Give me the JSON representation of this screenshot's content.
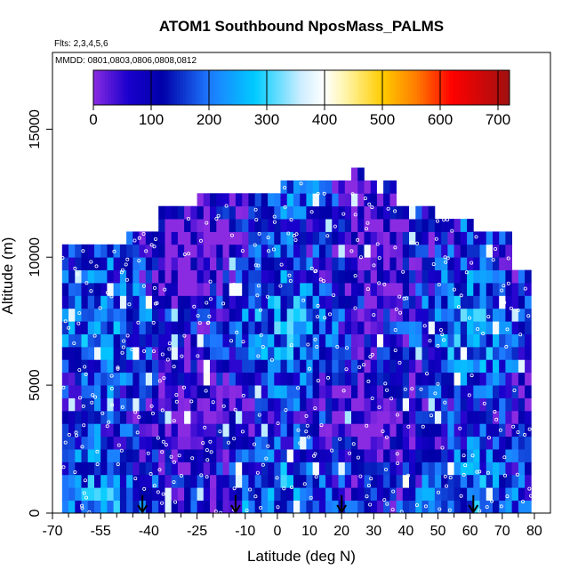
{
  "chart_data": {
    "type": "heatmap",
    "title": "ATOM1 Southbound NposMass_PALMS",
    "flights_note": "Flts: 2,3,4,5,6",
    "dates_note": "MMDD: 0801,0803,0806,0808,0812",
    "xlabel": "Latitude (deg N)",
    "ylabel": "Altitude (m)",
    "xlim": [
      -70,
      85
    ],
    "ylim": [
      0,
      18000
    ],
    "x_ticks": [
      -70,
      -55,
      -40,
      -25,
      -10,
      0,
      10,
      20,
      30,
      40,
      50,
      60,
      70,
      80
    ],
    "x_tick_labels": [
      "-70",
      "-55",
      "-40",
      "-25",
      "-10",
      "0",
      "10",
      "20",
      "30",
      "40",
      "50",
      "60",
      "70",
      "80"
    ],
    "x_minor_ticks": [
      -65,
      -60,
      -50,
      -45,
      -35,
      -30,
      -20,
      -15,
      -5,
      5,
      15,
      25,
      35,
      45,
      55,
      65,
      75
    ],
    "y_ticks": [
      0,
      5000,
      10000,
      15000
    ],
    "y_tick_labels": [
      "0",
      "5000",
      "10000",
      "15000"
    ],
    "colorbar": {
      "min": 0,
      "max": 720,
      "ticks": [
        0,
        100,
        200,
        300,
        400,
        500,
        600,
        700
      ],
      "tick_labels": [
        "0",
        "100",
        "200",
        "300",
        "400",
        "500",
        "600",
        "700"
      ],
      "stops": [
        {
          "value": 0,
          "color": "#8a2be2"
        },
        {
          "value": 60,
          "color": "#1a00cc"
        },
        {
          "value": 120,
          "color": "#0000a8"
        },
        {
          "value": 200,
          "color": "#1e78ff"
        },
        {
          "value": 280,
          "color": "#00ccff"
        },
        {
          "value": 360,
          "color": "#cfeeff"
        },
        {
          "value": 400,
          "color": "#ffffff"
        },
        {
          "value": 440,
          "color": "#fff3a0"
        },
        {
          "value": 500,
          "color": "#ffcc00"
        },
        {
          "value": 560,
          "color": "#ff7a00"
        },
        {
          "value": 620,
          "color": "#ff0000"
        },
        {
          "value": 720,
          "color": "#a01010"
        }
      ]
    },
    "profile_latitudes": [
      -42,
      -13,
      20,
      61
    ],
    "altitude_envelope": [
      {
        "lat_min": -67,
        "lat_max": -48,
        "alt_top": 10500
      },
      {
        "lat_min": -48,
        "lat_max": -38,
        "alt_top": 11000
      },
      {
        "lat_min": -38,
        "lat_max": -25,
        "alt_top": 11800
      },
      {
        "lat_min": -25,
        "lat_max": 0,
        "alt_top": 12200
      },
      {
        "lat_min": 0,
        "lat_max": 22,
        "alt_top": 13000
      },
      {
        "lat_min": 22,
        "lat_max": 26,
        "alt_top": 13500
      },
      {
        "lat_min": 26,
        "lat_max": 37,
        "alt_top": 13000
      },
      {
        "lat_min": 37,
        "lat_max": 48,
        "alt_top": 12000
      },
      {
        "lat_min": 48,
        "lat_max": 60,
        "alt_top": 11500
      },
      {
        "lat_min": 60,
        "lat_max": 72,
        "alt_top": 10800
      },
      {
        "lat_min": 72,
        "lat_max": 79,
        "alt_top": 9500
      }
    ],
    "lat_range": [
      -67,
      79
    ],
    "cell_lat_width": 2,
    "cell_alt_height": 500,
    "typical_value_range": [
      0,
      320
    ]
  }
}
